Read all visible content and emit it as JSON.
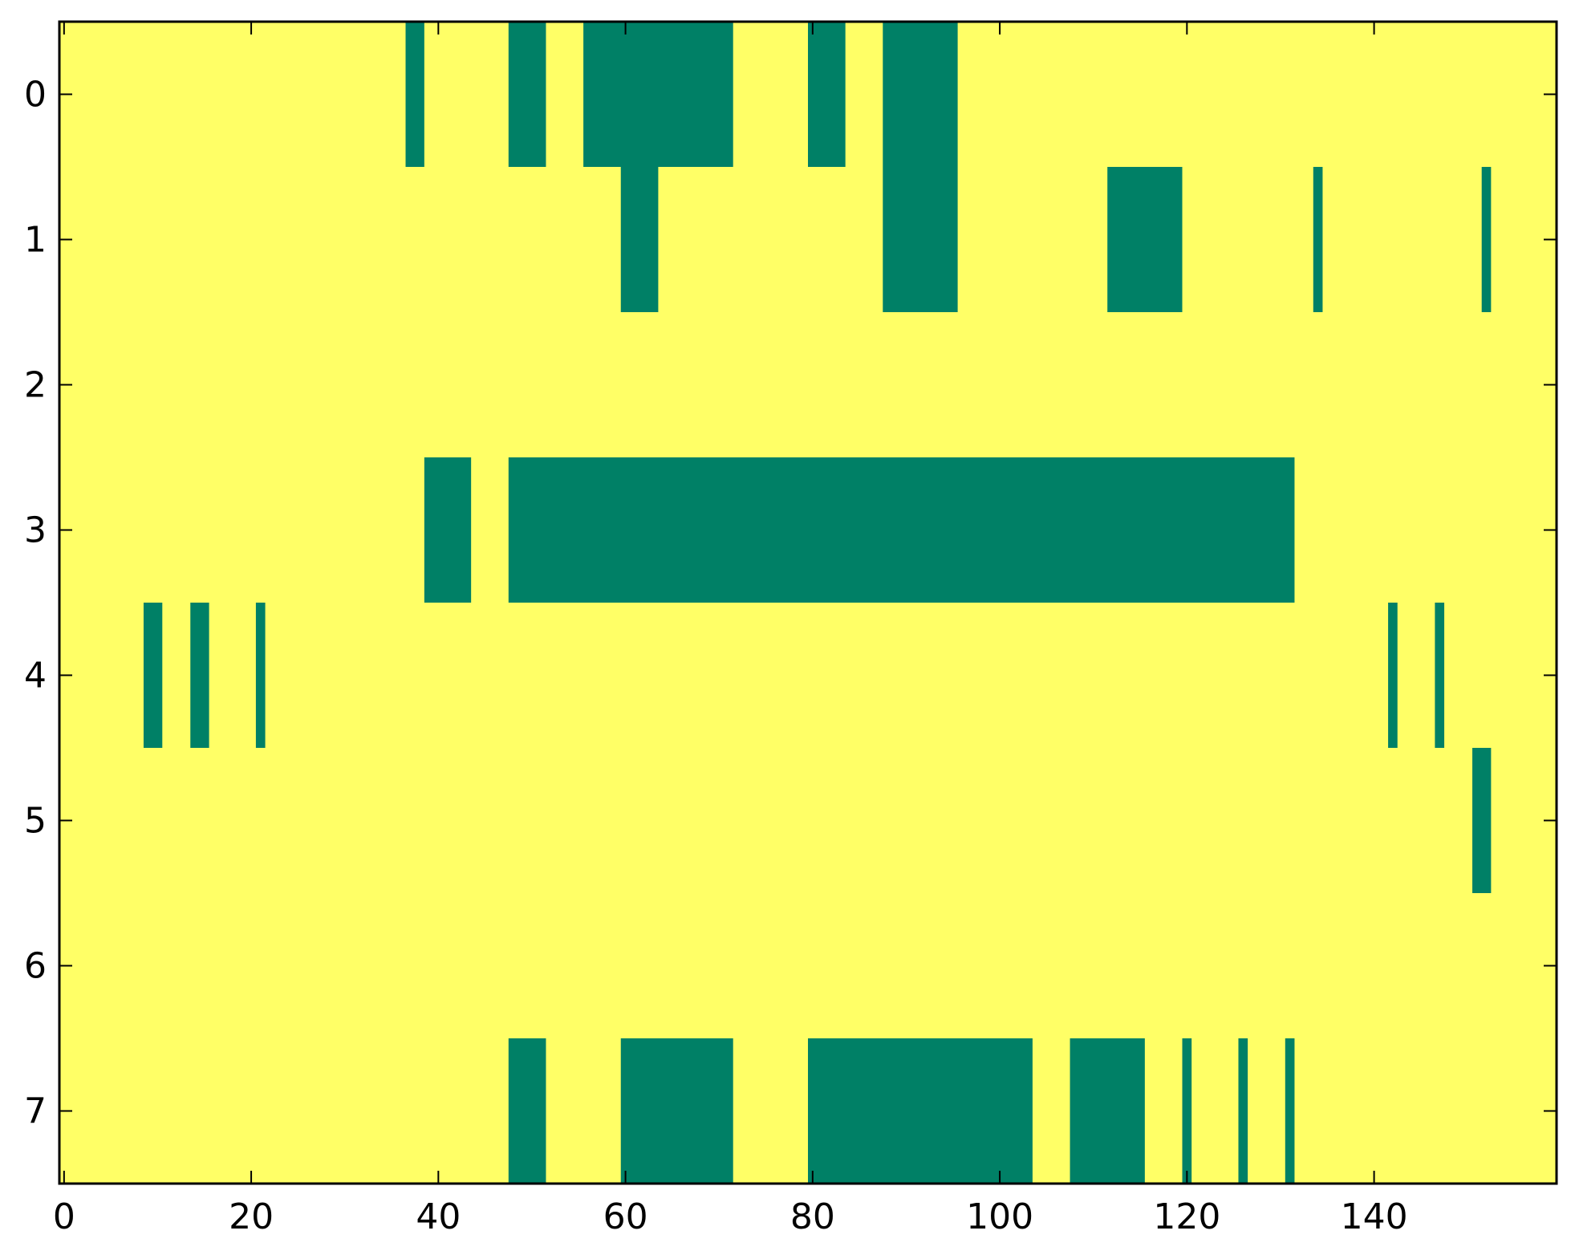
{
  "chart_data": {
    "type": "heatmap",
    "title": "",
    "xlabel": "",
    "ylabel": "",
    "xlim": [
      -0.5,
      159.5
    ],
    "ylim": [
      7.5,
      -0.5
    ],
    "x_ticks": [
      0,
      20,
      40,
      60,
      80,
      100,
      120,
      140
    ],
    "y_ticks": [
      0,
      1,
      2,
      3,
      4,
      5,
      6,
      7
    ],
    "grid": false,
    "legend": "none",
    "colors": {
      "background": "#ffff66",
      "cell": "#008066",
      "axis": "#000000"
    },
    "rows": [
      {
        "row": 0,
        "segments": [
          [
            37,
            38
          ],
          [
            48,
            51
          ],
          [
            56,
            71
          ],
          [
            80,
            83
          ],
          [
            88,
            95
          ]
        ]
      },
      {
        "row": 1,
        "segments": [
          [
            60,
            63
          ],
          [
            88,
            95
          ],
          [
            112,
            119
          ],
          [
            134,
            134
          ],
          [
            152,
            152
          ]
        ]
      },
      {
        "row": 2,
        "segments": []
      },
      {
        "row": 3,
        "segments": [
          [
            39,
            43
          ],
          [
            48,
            131
          ]
        ]
      },
      {
        "row": 4,
        "segments": [
          [
            9,
            10
          ],
          [
            14,
            15
          ],
          [
            21,
            21
          ],
          [
            142,
            142
          ],
          [
            147,
            147
          ]
        ]
      },
      {
        "row": 5,
        "segments": [
          [
            151,
            152
          ]
        ]
      },
      {
        "row": 6,
        "segments": []
      },
      {
        "row": 7,
        "segments": [
          [
            48,
            51
          ],
          [
            60,
            71
          ],
          [
            80,
            103
          ],
          [
            108,
            115
          ],
          [
            120,
            120
          ],
          [
            126,
            126
          ],
          [
            131,
            131
          ]
        ]
      }
    ]
  }
}
